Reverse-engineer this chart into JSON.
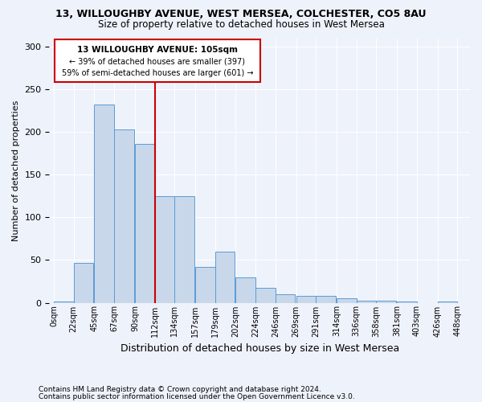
{
  "title1": "13, WILLOUGHBY AVENUE, WEST MERSEA, COLCHESTER, CO5 8AU",
  "title2": "Size of property relative to detached houses in West Mersea",
  "xlabel": "Distribution of detached houses by size in West Mersea",
  "ylabel": "Number of detached properties",
  "footer1": "Contains HM Land Registry data © Crown copyright and database right 2024.",
  "footer2": "Contains public sector information licensed under the Open Government Licence v3.0.",
  "annotation_line1": "13 WILLOUGHBY AVENUE: 105sqm",
  "annotation_line2": "← 39% of detached houses are smaller (397)",
  "annotation_line3": "59% of semi-detached houses are larger (601) →",
  "bar_color": "#c8d8ea",
  "bar_edge_color": "#5b9bd5",
  "ref_line_color": "#cc0000",
  "ref_line_x": 112,
  "bin_width": 22,
  "bin_starts": [
    0,
    22,
    45,
    67,
    90,
    112,
    134,
    157,
    179,
    202,
    224,
    246,
    269,
    291,
    314,
    336,
    358,
    381,
    403,
    426
  ],
  "bin_labels": [
    "0sqm",
    "22sqm",
    "45sqm",
    "67sqm",
    "90sqm",
    "112sqm",
    "134sqm",
    "157sqm",
    "179sqm",
    "202sqm",
    "224sqm",
    "246sqm",
    "269sqm",
    "291sqm",
    "314sqm",
    "336sqm",
    "358sqm",
    "381sqm",
    "403sqm",
    "426sqm",
    "448sqm"
  ],
  "bar_heights": [
    1,
    47,
    232,
    203,
    186,
    125,
    125,
    42,
    60,
    30,
    17,
    10,
    8,
    8,
    5,
    2,
    2,
    1,
    0,
    1
  ],
  "ylim": [
    0,
    310
  ],
  "yticks": [
    0,
    50,
    100,
    150,
    200,
    250,
    300
  ],
  "background_color": "#eef2fb",
  "grid_color": "#ffffff",
  "annotation_box_color": "#ffffff",
  "annotation_box_edge": "#cc0000"
}
